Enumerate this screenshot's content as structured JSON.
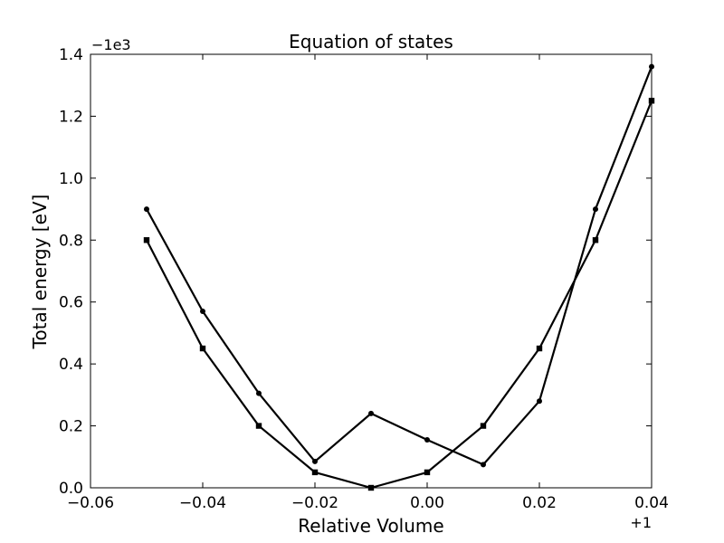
{
  "chart_data": {
    "type": "line",
    "title": "Equation of states",
    "xlabel": "Relative Volume",
    "ylabel": "Total energy [eV]",
    "x_offset_label": "+1",
    "y_offset_label": "−1e3",
    "xlim": [
      -0.06,
      0.04
    ],
    "ylim": [
      0.0,
      1.4
    ],
    "x_ticks": [
      -0.06,
      -0.04,
      -0.02,
      0.0,
      0.02,
      0.04
    ],
    "x_tick_labels": [
      "−0.06",
      "−0.04",
      "−0.02",
      "0.00",
      "0.02",
      "0.04"
    ],
    "y_ticks": [
      0.0,
      0.2,
      0.4,
      0.6,
      0.8,
      1.0,
      1.2,
      1.4
    ],
    "y_tick_labels": [
      "0.0",
      "0.2",
      "0.4",
      "0.6",
      "0.8",
      "1.0",
      "1.2",
      "1.4"
    ],
    "grid": false,
    "line_color": "#000000",
    "series": [
      {
        "marker": "circle",
        "x": [
          -0.05,
          -0.04,
          -0.03,
          -0.02,
          -0.01,
          0.0,
          0.01,
          0.02,
          0.03,
          0.04
        ],
        "y": [
          0.9,
          0.57,
          0.305,
          0.085,
          0.24,
          0.155,
          0.075,
          0.28,
          0.9,
          1.36
        ]
      },
      {
        "marker": "square",
        "x": [
          -0.05,
          -0.04,
          -0.03,
          -0.02,
          -0.01,
          0.0,
          0.01,
          0.02,
          0.03,
          0.04
        ],
        "y": [
          0.8,
          0.45,
          0.2,
          0.05,
          0.0,
          0.05,
          0.2,
          0.45,
          0.8,
          1.25
        ]
      }
    ]
  }
}
